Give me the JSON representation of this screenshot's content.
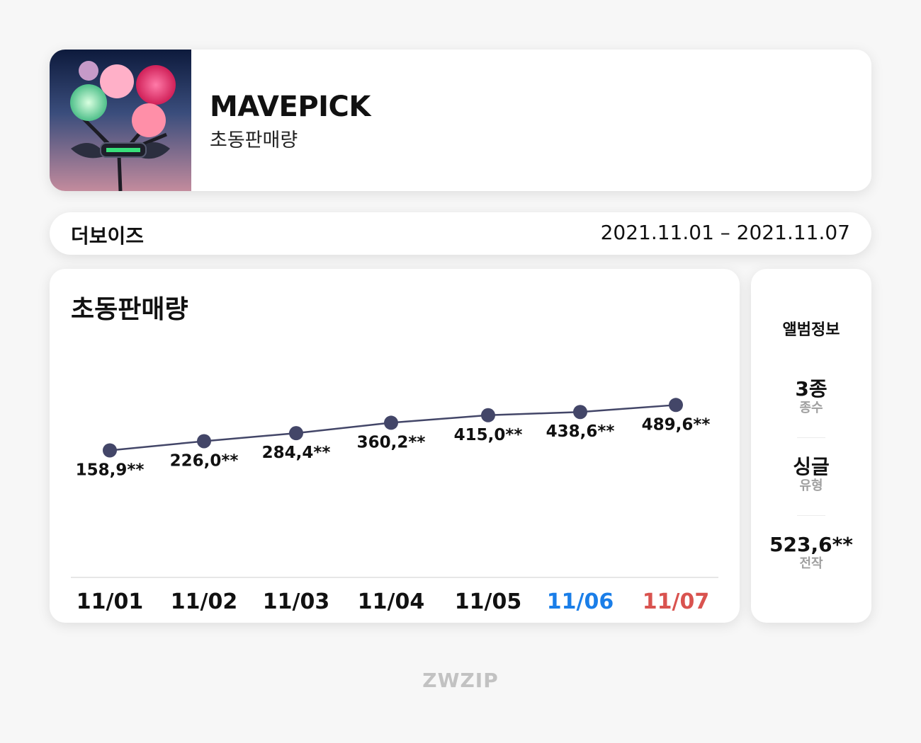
{
  "header": {
    "title": "MAVEPICK",
    "subtitle": "초동판매량"
  },
  "info_bar": {
    "artist": "더보이즈",
    "period": "2021.11.01 – 2021.11.07"
  },
  "chart_panel": {
    "title": "초동판매량"
  },
  "album_info": {
    "heading": "앨범정보",
    "stats": [
      {
        "value": "3종",
        "label": "종수"
      },
      {
        "value": "싱글",
        "label": "유형"
      },
      {
        "value": "523,6**",
        "label": "전작"
      }
    ]
  },
  "footer": {
    "brand": "ZWZIP"
  },
  "colors": {
    "line": "#434668",
    "saturday": "#1a7ee8",
    "sunday": "#d9534f"
  },
  "chart_data": {
    "type": "line",
    "categories": [
      "11/01",
      "11/02",
      "11/03",
      "11/04",
      "11/05",
      "11/06",
      "11/07"
    ],
    "values": [
      158.9,
      226.0,
      284.4,
      360.2,
      415.0,
      438.6,
      489.6
    ],
    "labels": [
      "158,9**",
      "226,0**",
      "284,4**",
      "360,2**",
      "415,0**",
      "438,6**",
      "489,6**"
    ],
    "category_colors": [
      "#111111",
      "#111111",
      "#111111",
      "#111111",
      "#111111",
      "#1a7ee8",
      "#d9534f"
    ],
    "title": "초동판매량",
    "xlabel": "",
    "ylabel": "",
    "grid": false
  }
}
